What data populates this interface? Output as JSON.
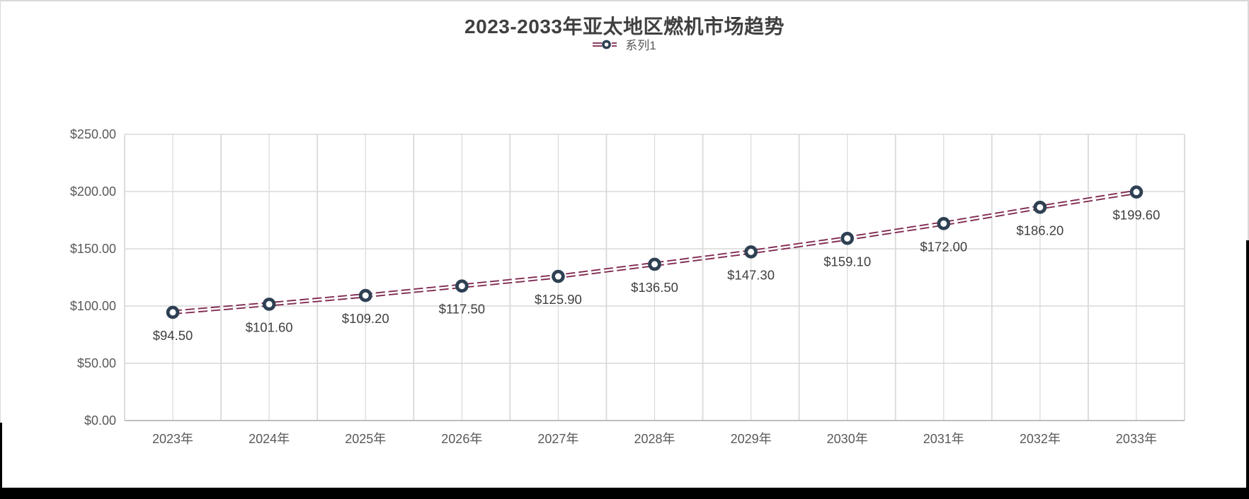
{
  "chart_data": {
    "type": "line",
    "title": "2023-2033年亚太地区燃机市场趋势",
    "categories": [
      "2023年",
      "2024年",
      "2025年",
      "2026年",
      "2027年",
      "2028年",
      "2029年",
      "2030年",
      "2031年",
      "2032年",
      "2033年"
    ],
    "series": [
      {
        "name": "系列1",
        "values": [
          94.5,
          101.6,
          109.2,
          117.5,
          125.9,
          136.5,
          147.3,
          159.1,
          172.0,
          186.2,
          199.6
        ],
        "data_labels": [
          "$94.50",
          "$101.60",
          "$109.20",
          "$117.50",
          "$125.90",
          "$136.50",
          "$147.30",
          "$159.10",
          "$172.00",
          "$186.20",
          "$199.60"
        ]
      }
    ],
    "y_axis": {
      "min": 0,
      "max": 250,
      "step": 50,
      "tick_labels": [
        "$0.00",
        "$50.00",
        "$100.00",
        "$150.00",
        "$200.00",
        "$250.00"
      ]
    },
    "legend_position": "top",
    "grid": "major-and-minor-vertical, major-horizontal",
    "line_style": "double-dash",
    "marker_style": "open-circle",
    "colors": {
      "line": "#802b52",
      "marker": "#2e4053",
      "gridline": "#d9d9d9",
      "axis_line": "#bfbfbf",
      "title_text": "#404040",
      "axis_text": "#595959",
      "label_text": "#404040",
      "bottom_bar": "#000000"
    }
  }
}
